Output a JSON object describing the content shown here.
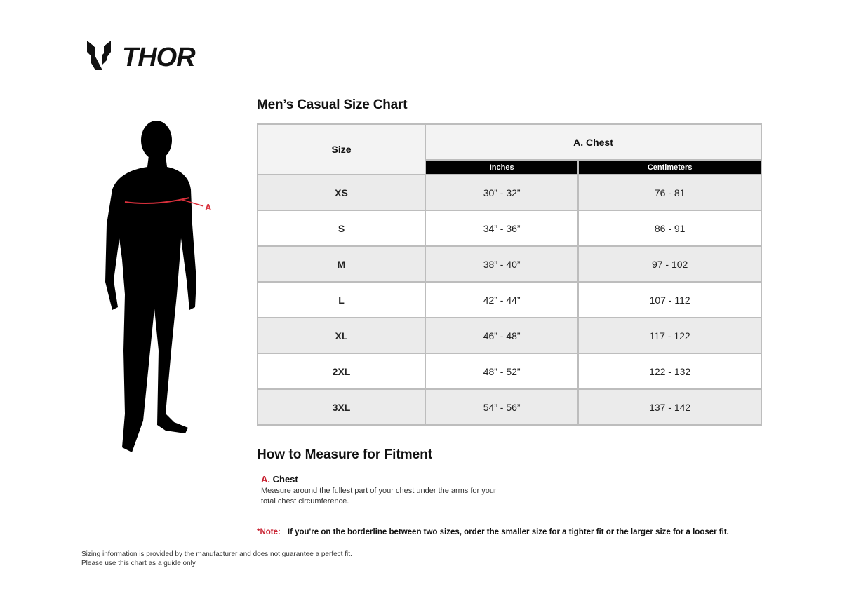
{
  "brand": {
    "name": "THOR"
  },
  "figure": {
    "marker_label": "A",
    "marker_color": "#d9303c"
  },
  "chart": {
    "title": "Men’s Casual Size Chart",
    "header": {
      "size": "Size",
      "group": "A. Chest",
      "inches": "Inches",
      "centimeters": "Centimeters"
    },
    "rows": [
      {
        "size": "XS",
        "inches": "30” - 32”",
        "cm": "76 - 81"
      },
      {
        "size": "S",
        "inches": "34” - 36”",
        "cm": "86 - 91"
      },
      {
        "size": "M",
        "inches": "38” - 40”",
        "cm": "97 - 102"
      },
      {
        "size": "L",
        "inches": "42” - 44”",
        "cm": "107 - 112"
      },
      {
        "size": "XL",
        "inches": "46” - 48”",
        "cm": "117 - 122"
      },
      {
        "size": "2XL",
        "inches": "48” - 52”",
        "cm": "122 - 132"
      },
      {
        "size": "3XL",
        "inches": "54” - 56”",
        "cm": "137 - 142"
      }
    ]
  },
  "howto": {
    "title": "How to Measure for Fitment",
    "letter": "A.",
    "label": "Chest",
    "desc_line1": "Measure around the fullest part of your chest under the arms for your",
    "desc_line2": "total chest circumference."
  },
  "note": {
    "label": "*Note:",
    "text": "If you're on the borderline between two sizes, order the smaller size for a tighter fit or the larger size for a looser fit."
  },
  "disclaimer": {
    "line1": "Sizing information is provided by the manufacturer and does not guarantee a perfect fit.",
    "line2": "Please use this chart as a guide only."
  },
  "colors": {
    "accent": "#c8202f",
    "subheader_bg": "#000000",
    "row_alt": "#ebebeb",
    "border": "#bdbdbd"
  }
}
